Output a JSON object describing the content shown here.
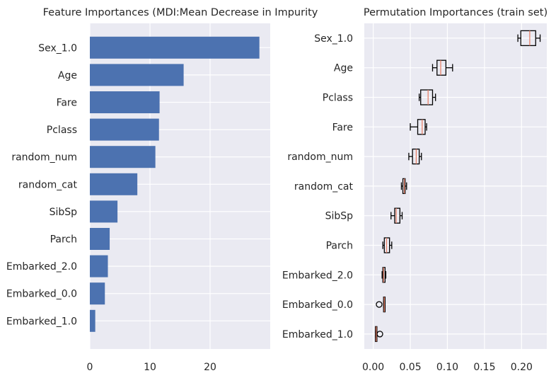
{
  "chart_data": [
    {
      "type": "bar",
      "orientation": "horizontal",
      "title": "Feature Importances (MDI:Mean Decrease in Impurity",
      "xlabel": "",
      "ylabel": "",
      "categories": [
        "Sex_1.0",
        "Age",
        "Fare",
        "Pclass",
        "random_num",
        "random_cat",
        "SibSp",
        "Parch",
        "Embarked_2.0",
        "Embarked_0.0",
        "Embarked_1.0"
      ],
      "values": [
        28.2,
        15.6,
        11.6,
        11.5,
        10.9,
        7.9,
        4.6,
        3.3,
        3.0,
        2.5,
        0.9
      ],
      "xlim": [
        0,
        30
      ],
      "xticks": [
        0,
        10,
        20
      ],
      "grid": true,
      "bar_color": "#4c72b0",
      "background": "#eaeaf2"
    },
    {
      "type": "box",
      "orientation": "horizontal",
      "title": "Permutation Importances (train set)",
      "xlabel": "",
      "ylabel": "",
      "categories": [
        "Sex_1.0",
        "Age",
        "Pclass",
        "Fare",
        "random_num",
        "random_cat",
        "SibSp",
        "Parch",
        "Embarked_2.0",
        "Embarked_0.0",
        "Embarked_1.0"
      ],
      "boxes": [
        {
          "whislo": 0.195,
          "q1": 0.199,
          "med": 0.211,
          "q3": 0.219,
          "whishi": 0.225,
          "fliers": []
        },
        {
          "whislo": 0.08,
          "q1": 0.086,
          "med": 0.091,
          "q3": 0.098,
          "whishi": 0.107,
          "fliers": []
        },
        {
          "whislo": 0.062,
          "q1": 0.064,
          "med": 0.074,
          "q3": 0.08,
          "whishi": 0.084,
          "fliers": []
        },
        {
          "whislo": 0.05,
          "q1": 0.06,
          "med": 0.066,
          "q3": 0.07,
          "whishi": 0.072,
          "fliers": []
        },
        {
          "whislo": 0.048,
          "q1": 0.053,
          "med": 0.058,
          "q3": 0.062,
          "whishi": 0.065,
          "fliers": []
        },
        {
          "whislo": 0.038,
          "q1": 0.04,
          "med": 0.042,
          "q3": 0.043,
          "whishi": 0.045,
          "fliers": []
        },
        {
          "whislo": 0.024,
          "q1": 0.029,
          "med": 0.031,
          "q3": 0.036,
          "whishi": 0.039,
          "fliers": []
        },
        {
          "whislo": 0.013,
          "q1": 0.015,
          "med": 0.018,
          "q3": 0.022,
          "whishi": 0.025,
          "fliers": []
        },
        {
          "whislo": 0.012,
          "q1": 0.013,
          "med": 0.014,
          "q3": 0.016,
          "whishi": 0.017,
          "fliers": []
        },
        {
          "whislo": 0.014,
          "q1": 0.014,
          "med": 0.015,
          "q3": 0.016,
          "whishi": 0.016,
          "fliers": [
            0.008
          ]
        },
        {
          "whislo": 0.003,
          "q1": 0.003,
          "med": 0.004,
          "q3": 0.005,
          "whishi": 0.005,
          "fliers": [
            0.009
          ]
        }
      ],
      "xlim": [
        -0.012,
        0.234
      ],
      "xticks": [
        0.0,
        0.05,
        0.1,
        0.15,
        0.2
      ],
      "xtick_labels": [
        "0.00",
        "0.05",
        "0.10",
        "0.15",
        "0.20"
      ],
      "grid": true,
      "box_color": "#000000",
      "median_color": "#e8836b",
      "background": "#eaeaf2"
    }
  ]
}
